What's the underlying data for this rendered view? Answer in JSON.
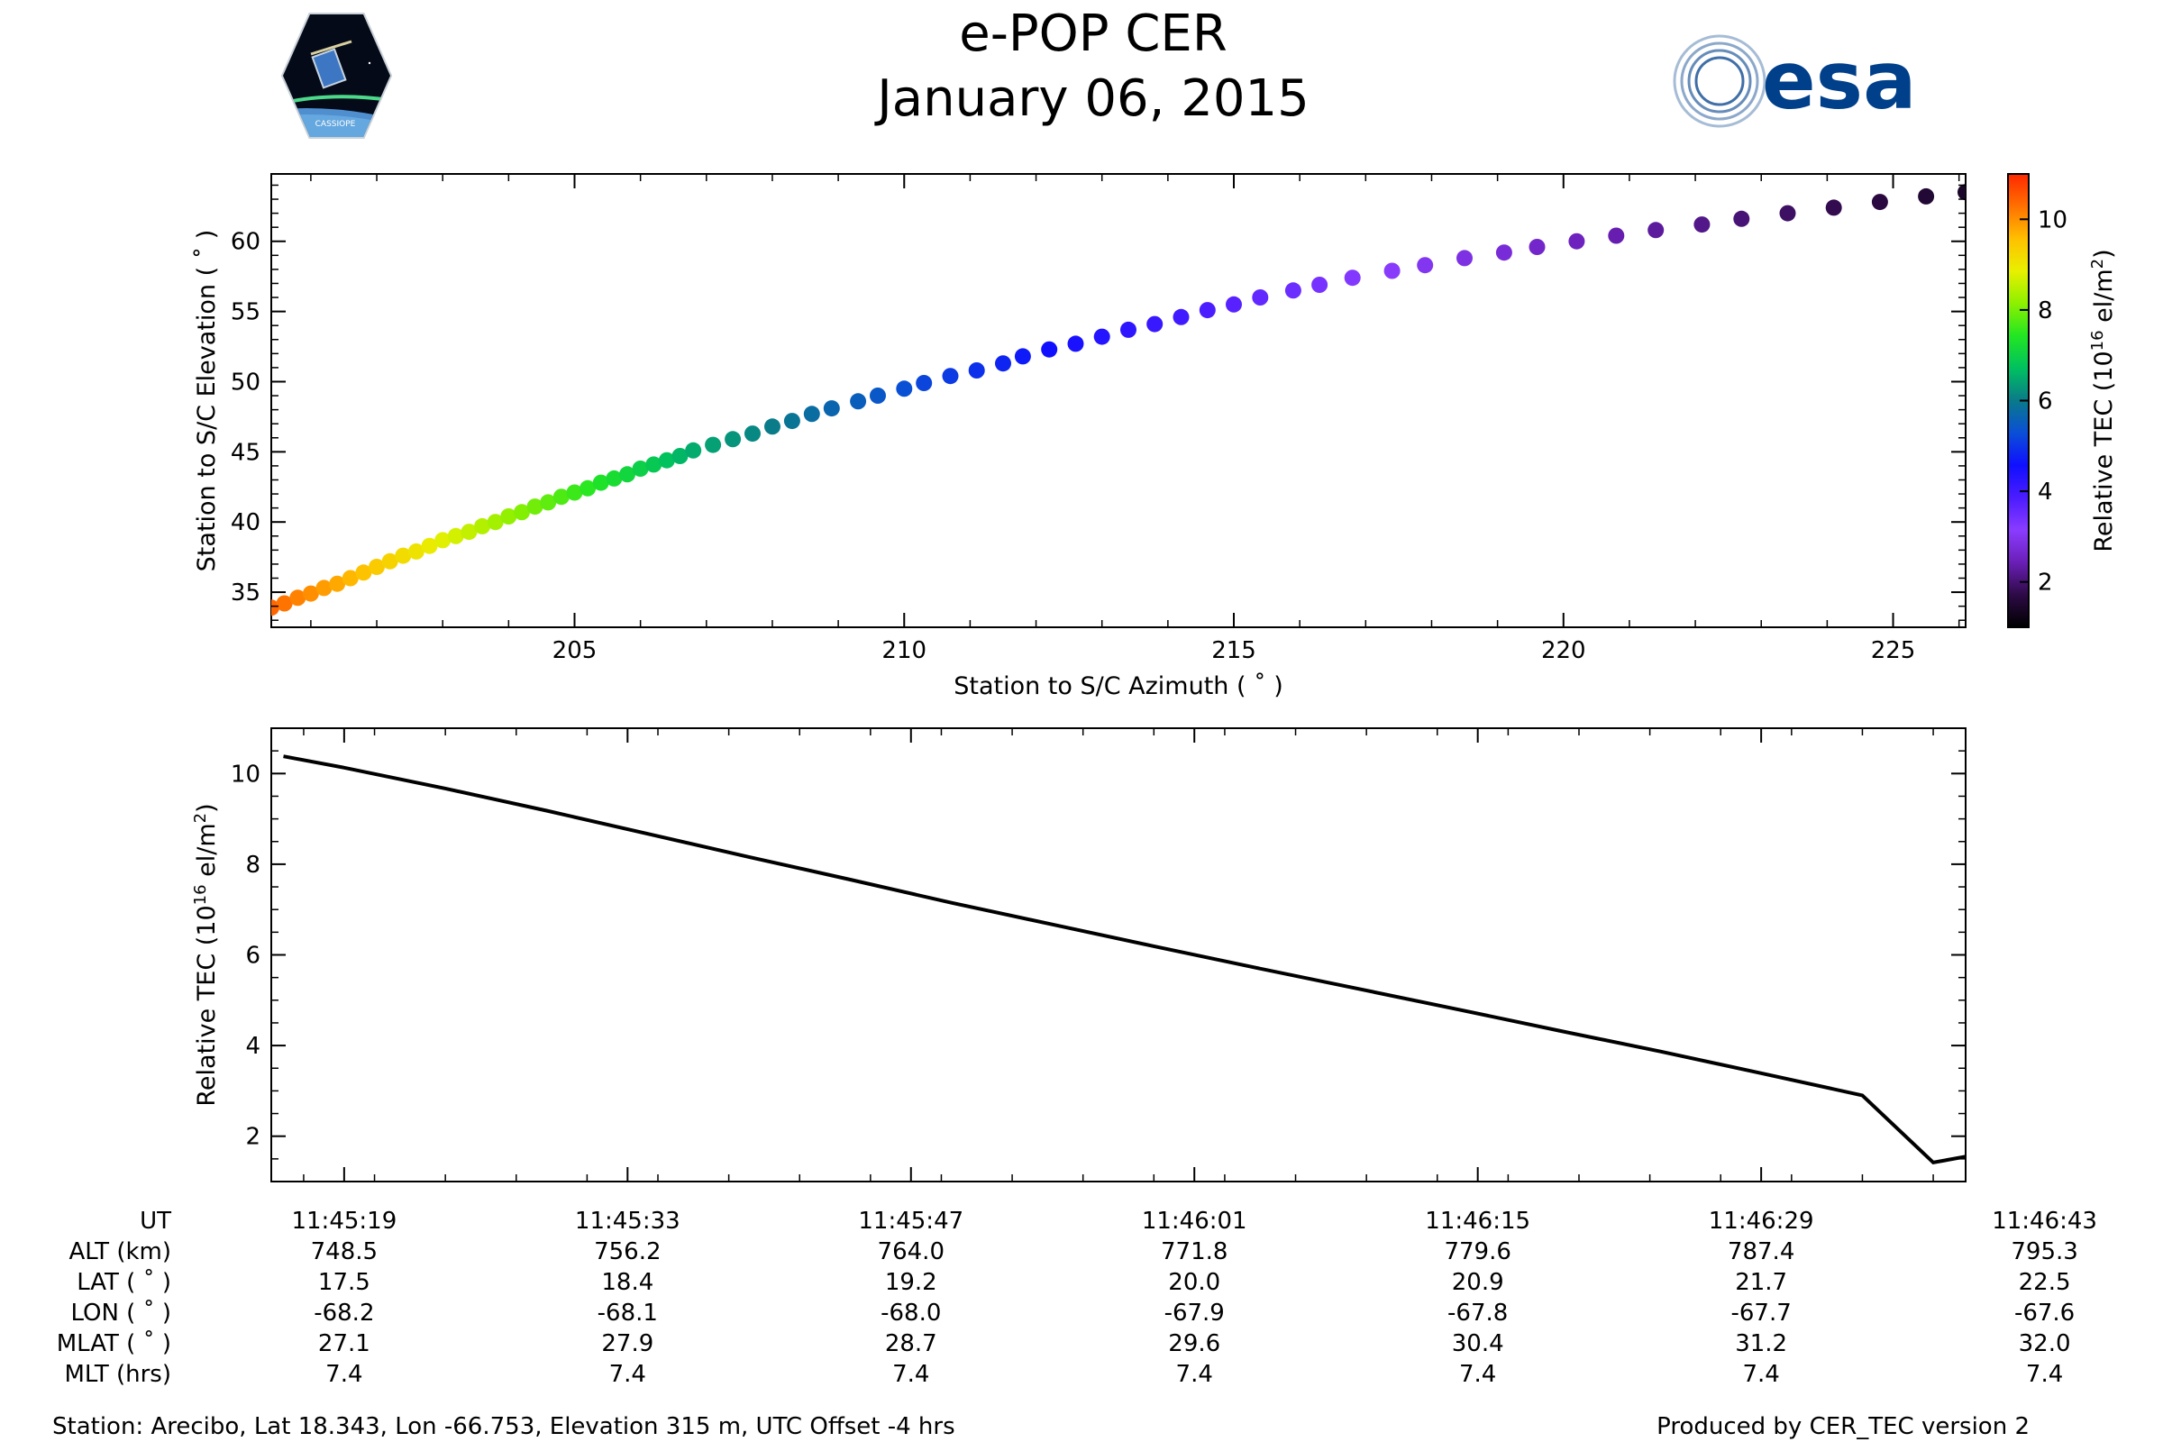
{
  "title": "e-POP CER",
  "subtitle": "January 06, 2015",
  "logos": {
    "left": {
      "name": "cassiope-mission-logo",
      "text": "CASSIOPE"
    },
    "right": {
      "name": "esa-logo",
      "text": "esa",
      "color": "#003f8a"
    }
  },
  "footer": {
    "station": "Station: Arecibo, Lat 18.343, Lon -66.753, Elevation 315 m, UTC Offset -4 hrs",
    "producer": "Produced by CER_TEC version 2"
  },
  "orbit_table": {
    "row_labels": [
      "UT",
      "ALT (km)",
      "LAT ( ˚ )",
      "LON ( ˚ )",
      "MLAT ( ˚ )",
      "MLT (hrs)"
    ],
    "columns": [
      {
        "UT": "11:45:19",
        "ALT": "748.5",
        "LAT": "17.5",
        "LON": "-68.2",
        "MLAT": "27.1",
        "MLT": "7.4"
      },
      {
        "UT": "11:45:33",
        "ALT": "756.2",
        "LAT": "18.4",
        "LON": "-68.1",
        "MLAT": "27.9",
        "MLT": "7.4"
      },
      {
        "UT": "11:45:47",
        "ALT": "764.0",
        "LAT": "19.2",
        "LON": "-68.0",
        "MLAT": "28.7",
        "MLT": "7.4"
      },
      {
        "UT": "11:46:01",
        "ALT": "771.8",
        "LAT": "20.0",
        "LON": "-67.9",
        "MLAT": "29.6",
        "MLT": "7.4"
      },
      {
        "UT": "11:46:15",
        "ALT": "779.6",
        "LAT": "20.9",
        "LON": "-67.8",
        "MLAT": "30.4",
        "MLT": "7.4"
      },
      {
        "UT": "11:46:29",
        "ALT": "787.4",
        "LAT": "21.7",
        "LON": "-67.7",
        "MLAT": "31.2",
        "MLT": "7.4"
      },
      {
        "UT": "11:46:43",
        "ALT": "795.3",
        "LAT": "22.5",
        "LON": "-67.6",
        "MLAT": "32.0",
        "MLT": "7.4"
      }
    ]
  },
  "chart_data": [
    {
      "type": "scatter",
      "xlabel": "Station to S/C Azimuth ( ˚ )",
      "ylabel": "Station to S/C Elevation ( ˚ )",
      "xlim": [
        200.4,
        226.1
      ],
      "ylim": [
        32.5,
        64.8
      ],
      "xticks": [
        205,
        210,
        215,
        220,
        225
      ],
      "yticks": [
        35,
        40,
        45,
        50,
        55,
        60
      ],
      "colorbar": {
        "label": "Relative TEC (10<sup>16</sup> el/m<sup>2</sup>)",
        "range": [
          1.0,
          11.0
        ],
        "ticks": [
          2,
          4,
          6,
          8,
          10
        ],
        "colormap": [
          "#000000",
          "#2d0a45",
          "#6a1fb6",
          "#8a3cff",
          "#4b1cff",
          "#1010ff",
          "#0a4fd6",
          "#0a7a8a",
          "#00c060",
          "#22e622",
          "#8cf000",
          "#e8f000",
          "#ffc000",
          "#ff7000",
          "#ff2800"
        ]
      },
      "tec_range": [
        1.42,
        10.38
      ],
      "points": {
        "az": [
          200.4,
          200.6,
          200.8,
          201.0,
          201.2,
          201.4,
          201.6,
          201.8,
          202.0,
          202.2,
          202.4,
          202.6,
          202.8,
          203.0,
          203.2,
          203.4,
          203.6,
          203.8,
          204.0,
          204.2,
          204.4,
          204.6,
          204.8,
          205.0,
          205.2,
          205.4,
          205.6,
          205.8,
          206.0,
          206.2,
          206.4,
          206.6,
          206.8,
          207.1,
          207.4,
          207.7,
          208.0,
          208.3,
          208.6,
          208.9,
          209.3,
          209.6,
          210.0,
          210.3,
          210.7,
          211.1,
          211.5,
          211.8,
          212.2,
          212.6,
          213.0,
          213.4,
          213.8,
          214.2,
          214.6,
          215.0,
          215.4,
          215.9,
          216.3,
          216.8,
          217.4,
          217.9,
          218.5,
          219.1,
          219.6,
          220.2,
          220.8,
          221.4,
          222.1,
          222.7,
          223.4,
          224.1,
          224.8,
          225.5,
          226.1
        ],
        "el": [
          33.9,
          34.2,
          34.6,
          34.9,
          35.3,
          35.6,
          36.0,
          36.4,
          36.8,
          37.2,
          37.6,
          37.9,
          38.3,
          38.7,
          39.0,
          39.3,
          39.7,
          40.0,
          40.4,
          40.7,
          41.1,
          41.4,
          41.8,
          42.1,
          42.4,
          42.8,
          43.1,
          43.4,
          43.8,
          44.1,
          44.4,
          44.7,
          45.1,
          45.5,
          45.9,
          46.3,
          46.8,
          47.2,
          47.7,
          48.1,
          48.6,
          49.0,
          49.5,
          49.9,
          50.4,
          50.8,
          51.3,
          51.8,
          52.3,
          52.7,
          53.2,
          53.7,
          54.1,
          54.6,
          55.1,
          55.5,
          56.0,
          56.5,
          56.9,
          57.4,
          57.9,
          58.3,
          58.8,
          59.2,
          59.6,
          60.0,
          60.4,
          60.8,
          61.2,
          61.6,
          62.0,
          62.4,
          62.8,
          63.2,
          63.5
        ]
      }
    },
    {
      "type": "line",
      "xlabel": "",
      "ylabel": "Relative TEC (10<sup>16</sup> el/m<sup>2</sup>)",
      "x_unit": "seconds after 11:45:19 UT",
      "xlim": [
        -3.6,
        80.1
      ],
      "ylim": [
        1.0,
        11.0
      ],
      "yticks": [
        2,
        4,
        6,
        8,
        10
      ],
      "xticks": [
        0,
        14,
        28,
        42,
        56,
        70,
        84
      ],
      "line_color": "#000000",
      "series": [
        {
          "x": [
            -3.0,
            0,
            5,
            10,
            15,
            20,
            25,
            30,
            35,
            40,
            45,
            50,
            55,
            60,
            65,
            70,
            75,
            78.5,
            80.1
          ],
          "y": [
            10.38,
            10.13,
            9.67,
            9.18,
            8.67,
            8.16,
            7.66,
            7.15,
            6.67,
            6.19,
            5.72,
            5.26,
            4.8,
            4.33,
            3.87,
            3.39,
            2.9,
            1.42,
            1.55
          ]
        }
      ]
    }
  ]
}
